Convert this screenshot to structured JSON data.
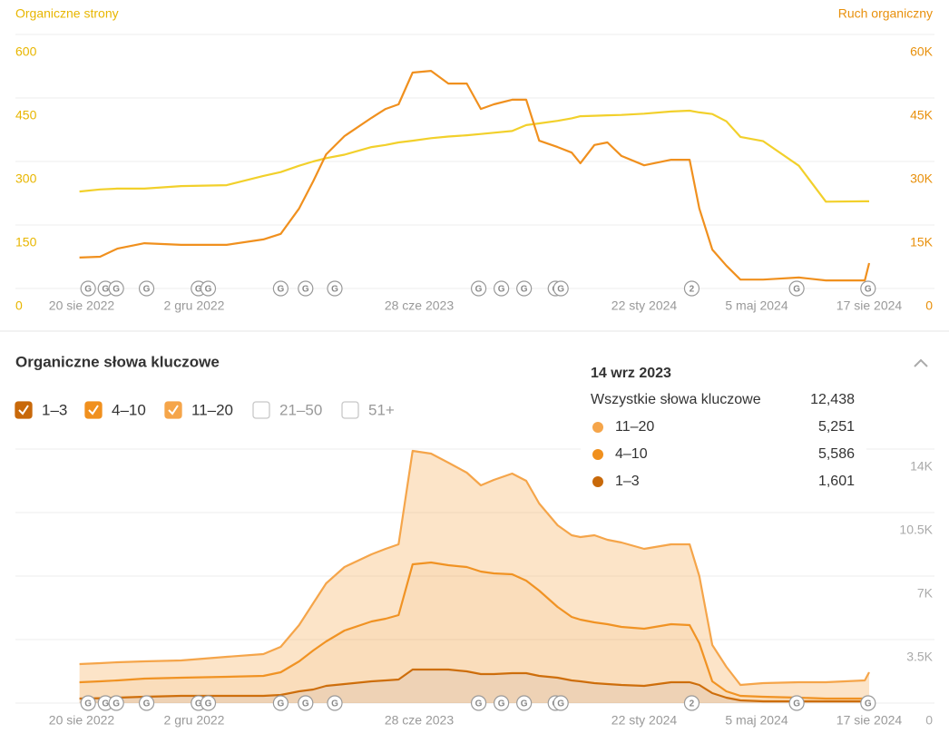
{
  "chart_data": [
    {
      "type": "line",
      "y_label": "Organiczne strony",
      "y2_label": "Ruch organiczny",
      "x": [
        "2022-08-18",
        "2022-09-06",
        "2022-09-22",
        "2022-10-17",
        "2022-11-20",
        "2023-01-01",
        "2023-02-04",
        "2023-02-20",
        "2023-03-09",
        "2023-03-22",
        "2023-04-03",
        "2023-04-20",
        "2023-05-15",
        "2023-05-28",
        "2023-06-09",
        "2023-06-22",
        "2023-07-09",
        "2023-07-25",
        "2023-08-11",
        "2023-08-24",
        "2023-09-05",
        "2023-09-22",
        "2023-10-05",
        "2023-10-17",
        "2023-11-03",
        "2023-11-16",
        "2023-11-24",
        "2023-12-07",
        "2023-12-19",
        "2024-01-01",
        "2024-01-22",
        "2024-02-16",
        "2024-03-04",
        "2024-03-13",
        "2024-03-25",
        "2024-04-07",
        "2024-04-20",
        "2024-05-11",
        "2024-06-13",
        "2024-07-08",
        "2024-08-13",
        "2024-08-17"
      ],
      "series": [
        {
          "color": "#f2d02b",
          "values": [
            229,
            234,
            236,
            236,
            242,
            244,
            266,
            275,
            290,
            300,
            308,
            316,
            334,
            339,
            345,
            349,
            355,
            359,
            362,
            365,
            368,
            372,
            386,
            390,
            396,
            402,
            407,
            408,
            409,
            410,
            413,
            418,
            420,
            416,
            412,
            395,
            358,
            348,
            290,
            205,
            206,
            206
          ]
        },
        {
          "color": "#f0901e",
          "axis": "y2",
          "values": [
            7300,
            7500,
            9400,
            10700,
            10300,
            10300,
            11600,
            12900,
            18900,
            25300,
            31700,
            36000,
            40300,
            42400,
            43500,
            51000,
            51400,
            48400,
            48400,
            42400,
            43500,
            44600,
            44600,
            34900,
            33400,
            32100,
            29600,
            33900,
            34500,
            31300,
            29100,
            30400,
            30400,
            18900,
            9200,
            5400,
            2100,
            2100,
            2600,
            1900,
            1900,
            6000
          ]
        }
      ],
      "xlim": [
        "2022-08-20",
        "2024-08-17"
      ],
      "xticks": [
        {
          "value": "2022-08-20",
          "label": "20 sie 2022"
        },
        {
          "value": "2022-12-02",
          "label": "2 gru 2022"
        },
        {
          "value": "2023-06-28",
          "label": "28 cze 2023"
        },
        {
          "value": "2024-01-22",
          "label": "22 sty 2024"
        },
        {
          "value": "2024-05-05",
          "label": "5 maj 2024"
        },
        {
          "value": "2024-08-17",
          "label": "17 sie 2024"
        }
      ],
      "ylim": [
        0,
        600
      ],
      "yticks": [
        0,
        150,
        300,
        450,
        600
      ],
      "y2lim": [
        0,
        60000
      ],
      "y2ticks": [
        0,
        {
          "value": 15000,
          "label": "15K"
        },
        {
          "value": 30000,
          "label": "30K"
        },
        {
          "value": 45000,
          "label": "45K"
        },
        {
          "value": 60000,
          "label": "60K"
        }
      ],
      "grid": true,
      "annotations": [
        {
          "x": "2022-08-26",
          "label": "G"
        },
        {
          "x": "2022-09-11",
          "label": "G"
        },
        {
          "x": "2022-09-21",
          "label": "G"
        },
        {
          "x": "2022-10-19",
          "label": "G"
        },
        {
          "x": "2022-12-06",
          "label": "G"
        },
        {
          "x": "2022-12-15",
          "label": "G"
        },
        {
          "x": "2023-02-20",
          "label": "G"
        },
        {
          "x": "2023-03-15",
          "label": "G"
        },
        {
          "x": "2023-04-11",
          "label": "G"
        },
        {
          "x": "2023-08-22",
          "label": "G"
        },
        {
          "x": "2023-09-12",
          "label": "G"
        },
        {
          "x": "2023-10-03",
          "label": "G"
        },
        {
          "x": "2023-11-01",
          "label": "G"
        },
        {
          "x": "2023-11-06",
          "label": "G"
        },
        {
          "x": "2024-03-06",
          "label": "2"
        },
        {
          "x": "2024-06-11",
          "label": "G"
        },
        {
          "x": "2024-08-16",
          "label": "G"
        }
      ]
    },
    {
      "type": "stacked_area",
      "title": "Organiczne słowa kluczowe",
      "x": [
        "2022-08-18",
        "2022-09-06",
        "2022-09-22",
        "2022-10-17",
        "2022-11-20",
        "2023-01-01",
        "2023-02-04",
        "2023-02-20",
        "2023-03-09",
        "2023-03-22",
        "2023-04-03",
        "2023-04-20",
        "2023-05-15",
        "2023-05-28",
        "2023-06-09",
        "2023-06-22",
        "2023-07-09",
        "2023-07-25",
        "2023-08-11",
        "2023-08-24",
        "2023-09-05",
        "2023-09-22",
        "2023-10-05",
        "2023-10-17",
        "2023-11-03",
        "2023-11-16",
        "2023-11-24",
        "2023-12-07",
        "2023-12-19",
        "2024-01-01",
        "2024-01-22",
        "2024-02-16",
        "2024-03-04",
        "2024-03-13",
        "2024-03-25",
        "2024-04-07",
        "2024-04-20",
        "2024-05-11",
        "2024-06-13",
        "2024-07-08",
        "2024-08-13",
        "2024-08-17"
      ],
      "series": [
        {
          "name": "1–3",
          "color": "#c8690a",
          "values": [
            250,
            270,
            300,
            350,
            400,
            400,
            400,
            450,
            650,
            750,
            950,
            1050,
            1200,
            1250,
            1300,
            1850,
            1850,
            1850,
            1750,
            1600,
            1600,
            1650,
            1650,
            1500,
            1400,
            1250,
            1200,
            1100,
            1050,
            1000,
            950,
            1150,
            1150,
            1000,
            550,
            300,
            150,
            100,
            100,
            100,
            100,
            100
          ]
        },
        {
          "name": "4–10",
          "color": "#f0901e",
          "values": [
            900,
            930,
            950,
            1000,
            1000,
            1050,
            1100,
            1250,
            1650,
            2150,
            2450,
            2950,
            3300,
            3400,
            3550,
            5800,
            5900,
            5750,
            5750,
            5650,
            5550,
            5450,
            5100,
            4700,
            3900,
            3500,
            3400,
            3350,
            3300,
            3200,
            3150,
            3200,
            3150,
            2300,
            650,
            350,
            250,
            250,
            200,
            150,
            150,
            200
          ]
        },
        {
          "name": "11–20",
          "color": "#f5a54a",
          "values": [
            1000,
            1000,
            1000,
            950,
            950,
            1100,
            1200,
            1400,
            2000,
            2600,
            3200,
            3500,
            3700,
            3850,
            3900,
            6250,
            6000,
            5650,
            5200,
            4750,
            5150,
            5550,
            5500,
            4800,
            4500,
            4500,
            4550,
            4800,
            4650,
            4650,
            4400,
            4400,
            4450,
            3700,
            2000,
            1350,
            600,
            750,
            850,
            900,
            1000,
            1400
          ]
        }
      ],
      "filters": [
        {
          "label": "1–3",
          "checked": true
        },
        {
          "label": "4–10",
          "checked": true
        },
        {
          "label": "11–20",
          "checked": true
        },
        {
          "label": "21–50",
          "checked": false
        },
        {
          "label": "51+",
          "checked": false
        }
      ],
      "tooltip": {
        "date": "14 wrz 2023",
        "total_label": "Wszystkie słowa kluczowe",
        "total": "12,438",
        "rows": [
          {
            "name": "11–20",
            "value": "5,251"
          },
          {
            "name": "4–10",
            "value": "5,586"
          },
          {
            "name": "1–3",
            "value": "1,601"
          }
        ]
      },
      "xlim": [
        "2022-08-20",
        "2024-08-17"
      ],
      "xticks": [
        {
          "value": "2022-08-20",
          "label": "20 sie 2022"
        },
        {
          "value": "2022-12-02",
          "label": "2 gru 2022"
        },
        {
          "value": "2023-06-28",
          "label": "28 cze 2023"
        },
        {
          "value": "2024-01-22",
          "label": "22 sty 2024"
        },
        {
          "value": "2024-05-05",
          "label": "5 maj 2024"
        },
        {
          "value": "2024-08-17",
          "label": "17 sie 2024"
        }
      ],
      "y2lim": [
        0,
        14000
      ],
      "y2ticks": [
        0,
        {
          "value": 3500,
          "label": "3.5K"
        },
        {
          "value": 7000,
          "label": "7K"
        },
        {
          "value": 10500,
          "label": "10.5K"
        },
        {
          "value": 14000,
          "label": "14K"
        }
      ],
      "grid": true,
      "annotations": [
        {
          "x": "2022-08-26",
          "label": "G"
        },
        {
          "x": "2022-09-11",
          "label": "G"
        },
        {
          "x": "2022-09-21",
          "label": "G"
        },
        {
          "x": "2022-10-19",
          "label": "G"
        },
        {
          "x": "2022-12-06",
          "label": "G"
        },
        {
          "x": "2022-12-15",
          "label": "G"
        },
        {
          "x": "2023-02-20",
          "label": "G"
        },
        {
          "x": "2023-03-15",
          "label": "G"
        },
        {
          "x": "2023-04-11",
          "label": "G"
        },
        {
          "x": "2023-08-22",
          "label": "G"
        },
        {
          "x": "2023-09-12",
          "label": "G"
        },
        {
          "x": "2023-10-03",
          "label": "G"
        },
        {
          "x": "2023-11-01",
          "label": "G"
        },
        {
          "x": "2023-11-06",
          "label": "G"
        },
        {
          "x": "2024-03-06",
          "label": "2"
        },
        {
          "x": "2024-06-11",
          "label": "G"
        },
        {
          "x": "2024-08-16",
          "label": "G"
        }
      ]
    }
  ]
}
